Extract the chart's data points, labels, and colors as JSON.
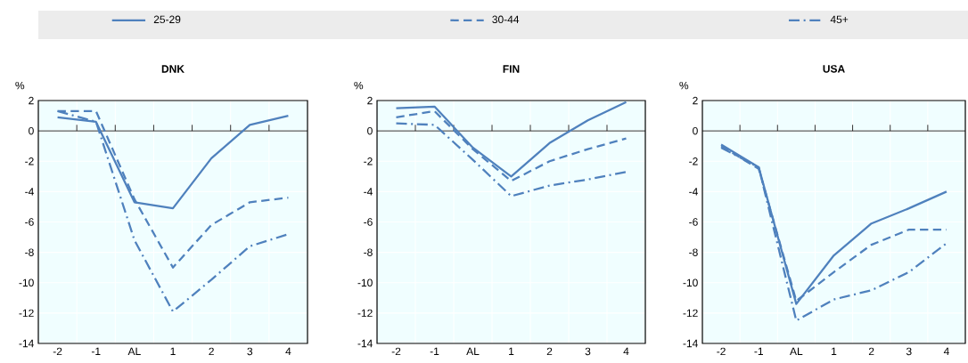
{
  "chart_data": [
    {
      "type": "line",
      "title": "DNK",
      "ylabel": "%",
      "categories": [
        "-2",
        "-1",
        "AL",
        "1",
        "2",
        "3",
        "4"
      ],
      "ylim": [
        -14,
        2
      ],
      "yticks": [
        -14,
        -12,
        -10,
        -8,
        -6,
        -4,
        -2,
        0,
        2
      ],
      "grid": true,
      "legend": "top",
      "series": [
        {
          "name": "25-29",
          "color": "#4f81bd",
          "line_style": "solid",
          "values": [
            0.9,
            0.6,
            -4.7,
            -5.1,
            -1.8,
            0.4,
            1.0
          ]
        },
        {
          "name": "30-44",
          "color": "#4f81bd",
          "line_style": "dashed",
          "values": [
            1.3,
            1.3,
            -4.5,
            -9.0,
            -6.2,
            -4.7,
            -4.4
          ]
        },
        {
          "name": "45+",
          "color": "#4f81bd",
          "line_style": "dashdot",
          "values": [
            1.3,
            0.6,
            -7.2,
            -11.9,
            -9.8,
            -7.6,
            -6.8
          ]
        }
      ]
    },
    {
      "type": "line",
      "title": "FIN",
      "ylabel": "%",
      "categories": [
        "-2",
        "-1",
        "AL",
        "1",
        "2",
        "3",
        "4"
      ],
      "ylim": [
        -14,
        2
      ],
      "yticks": [
        -14,
        -12,
        -10,
        -8,
        -6,
        -4,
        -2,
        0,
        2
      ],
      "grid": true,
      "series": [
        {
          "color": "#4f81bd",
          "line_style": "solid",
          "values": [
            1.5,
            1.6,
            -1.1,
            -3.0,
            -0.8,
            0.7,
            1.9
          ]
        },
        {
          "color": "#4f81bd",
          "line_style": "dashed",
          "values": [
            0.9,
            1.3,
            -1.2,
            -3.3,
            -2.0,
            -1.2,
            -0.5
          ]
        },
        {
          "color": "#4f81bd",
          "line_style": "dashdot",
          "values": [
            0.5,
            0.4,
            -1.9,
            -4.3,
            -3.6,
            -3.2,
            -2.7
          ]
        }
      ]
    },
    {
      "type": "line",
      "title": "USA",
      "ylabel": "%",
      "categories": [
        "-2",
        "-1",
        "AL",
        "1",
        "2",
        "3",
        "4"
      ],
      "ylim": [
        -14,
        2
      ],
      "yticks": [
        -14,
        -12,
        -10,
        -8,
        -6,
        -4,
        -2,
        0,
        2
      ],
      "grid": true,
      "series": [
        {
          "color": "#4f81bd",
          "line_style": "solid",
          "values": [
            -0.9,
            -2.4,
            -11.4,
            -8.2,
            -6.1,
            -5.1,
            -4.0
          ]
        },
        {
          "color": "#4f81bd",
          "line_style": "dashed",
          "values": [
            -1.0,
            -2.5,
            -11.2,
            -9.3,
            -7.5,
            -6.5,
            -6.5
          ]
        },
        {
          "color": "#4f81bd",
          "line_style": "dashdot",
          "values": [
            -1.1,
            -2.4,
            -12.5,
            -11.1,
            -10.5,
            -9.3,
            -7.4
          ]
        }
      ]
    }
  ]
}
